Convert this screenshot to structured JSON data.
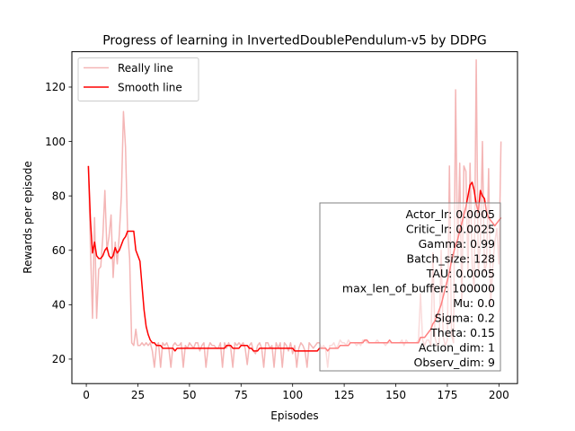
{
  "chart_data": {
    "type": "line",
    "title": "Progress of learning in InvertedDoublePendulum-v5 by DDPG",
    "xlabel": "Episodes",
    "ylabel": "Rewards per episode",
    "xlim": [
      -7,
      209
    ],
    "ylim": [
      11,
      133
    ],
    "xticks": [
      0,
      25,
      50,
      75,
      100,
      125,
      150,
      175,
      200
    ],
    "yticks": [
      20,
      40,
      60,
      80,
      100,
      120
    ],
    "grid": false,
    "legend_position": "upper left",
    "x": [
      1,
      2,
      3,
      4,
      5,
      6,
      7,
      8,
      9,
      10,
      11,
      12,
      13,
      14,
      15,
      16,
      17,
      18,
      19,
      20,
      21,
      22,
      23,
      24,
      25,
      26,
      27,
      28,
      29,
      30,
      31,
      32,
      33,
      34,
      35,
      36,
      37,
      38,
      39,
      40,
      41,
      42,
      43,
      44,
      45,
      46,
      47,
      48,
      49,
      50,
      51,
      52,
      53,
      54,
      55,
      56,
      57,
      58,
      59,
      60,
      61,
      62,
      63,
      64,
      65,
      66,
      67,
      68,
      69,
      70,
      71,
      72,
      73,
      74,
      75,
      76,
      77,
      78,
      79,
      80,
      81,
      82,
      83,
      84,
      85,
      86,
      87,
      88,
      89,
      90,
      91,
      92,
      93,
      94,
      95,
      96,
      97,
      98,
      99,
      100,
      101,
      102,
      103,
      104,
      105,
      106,
      107,
      108,
      109,
      110,
      111,
      112,
      113,
      114,
      115,
      116,
      117,
      118,
      119,
      120,
      121,
      122,
      123,
      124,
      125,
      126,
      127,
      128,
      129,
      130,
      131,
      132,
      133,
      134,
      135,
      136,
      137,
      138,
      139,
      140,
      141,
      142,
      143,
      144,
      145,
      146,
      147,
      148,
      149,
      150,
      151,
      152,
      153,
      154,
      155,
      156,
      157,
      158,
      159,
      160,
      161,
      162,
      163,
      164,
      165,
      166,
      167,
      168,
      169,
      170,
      171,
      172,
      173,
      174,
      175,
      176,
      177,
      178,
      179,
      180,
      181,
      182,
      183,
      184,
      185,
      186,
      187,
      188,
      189,
      190,
      191,
      192,
      193,
      194,
      195,
      196,
      197,
      198,
      199,
      200,
      201
    ],
    "series": [
      {
        "name": "Really line",
        "color": "#f4b6b6",
        "values": [
          91,
          61,
          35,
          72,
          35,
          53,
          54,
          65,
          82,
          60,
          65,
          73,
          50,
          63,
          55,
          66,
          80,
          111,
          98,
          67,
          57,
          26,
          25,
          31,
          25,
          25,
          26,
          25,
          26,
          25,
          26,
          23,
          17,
          25,
          26,
          17,
          26,
          25,
          26,
          24,
          17,
          25,
          26,
          25,
          25,
          26,
          17,
          25,
          24,
          26,
          25,
          24,
          26,
          26,
          23,
          25,
          26,
          17,
          24,
          26,
          25,
          25,
          24,
          24,
          26,
          17,
          26,
          24,
          26,
          24,
          17,
          26,
          25,
          26,
          25,
          26,
          24,
          18,
          25,
          26,
          23,
          22,
          25,
          26,
          24,
          17,
          26,
          26,
          24,
          25,
          17,
          26,
          24,
          26,
          17,
          26,
          25,
          23,
          26,
          22,
          25,
          17,
          24,
          26,
          25,
          23,
          17,
          26,
          25,
          24,
          25,
          26,
          26,
          24,
          25,
          24,
          17,
          25,
          25,
          26,
          24,
          25,
          27,
          26,
          26,
          25,
          27,
          26,
          26,
          26,
          25,
          26,
          25,
          27,
          27,
          26,
          26,
          26,
          26,
          26,
          27,
          26,
          26,
          26,
          25,
          26,
          26,
          26,
          26,
          26,
          26,
          26,
          27,
          25,
          27,
          26,
          26,
          26,
          26,
          26,
          27,
          44,
          27,
          25,
          27,
          27,
          25,
          59,
          28,
          25,
          26,
          60,
          28,
          25,
          27,
          91,
          29,
          26,
          119,
          57,
          92,
          40,
          91,
          89,
          52,
          92,
          55,
          45,
          130,
          51,
          63,
          100,
          52,
          55,
          90,
          40,
          54,
          63,
          68,
          55,
          100
        ],
        "smooth": [
          91,
          71,
          59,
          63,
          58,
          57,
          57,
          58,
          60,
          61,
          58,
          57,
          58,
          61,
          59,
          60,
          62,
          64,
          65,
          67,
          67,
          67,
          67,
          60,
          58,
          56,
          47,
          38,
          32,
          29,
          27,
          26,
          26,
          25,
          25,
          25,
          24,
          24,
          24,
          24,
          24,
          24,
          23,
          24,
          24,
          24,
          24,
          24,
          24,
          24,
          24,
          24,
          24,
          24,
          24,
          24,
          24,
          24,
          24,
          24,
          24,
          24,
          24,
          24,
          24,
          24,
          24,
          25,
          25,
          25,
          24,
          24,
          24,
          24,
          25,
          25,
          25,
          25,
          24,
          24,
          23,
          23,
          23,
          24,
          24,
          24,
          24,
          24,
          24,
          24,
          24,
          24,
          24,
          24,
          24,
          24,
          24,
          24,
          24,
          24,
          23,
          23,
          23,
          23,
          23,
          23,
          23,
          23,
          23,
          23,
          23,
          23,
          24,
          24,
          24,
          24,
          23,
          24,
          24,
          24,
          24,
          24,
          25,
          25,
          25,
          25,
          25,
          26,
          26,
          26,
          26,
          26,
          26,
          26,
          27,
          27,
          26,
          26,
          26,
          26,
          26,
          26,
          26,
          26,
          26,
          26,
          27,
          26,
          26,
          26,
          26,
          26,
          26,
          26,
          26,
          26,
          26,
          26,
          26,
          26,
          26,
          28,
          28,
          28,
          29,
          30,
          31,
          33,
          34,
          36,
          38,
          40,
          43,
          46,
          49,
          52,
          56,
          59,
          62,
          64,
          67,
          70,
          73,
          76,
          80,
          84,
          85,
          82,
          77,
          74,
          82,
          80,
          79,
          74,
          72,
          71,
          70,
          69,
          70,
          71,
          72
        ]
      }
    ],
    "legend": {
      "really_label": "Really line",
      "smooth_label": "Smooth line"
    },
    "legend_colors": {
      "really": "#f4b6b6",
      "smooth": "#ff0000"
    },
    "annotations": [
      "Actor_lr: 0.0005",
      "Critic_lr: 0.0025",
      "Gamma: 0.99",
      "Batch_size: 128",
      "TAU: 0.0005",
      "max_len_of_buffer: 100000",
      "Mu: 0.0",
      "Sigma: 0.2",
      "Theta: 0.15",
      "Action_dim: 1",
      "Observ_dim: 9"
    ]
  }
}
